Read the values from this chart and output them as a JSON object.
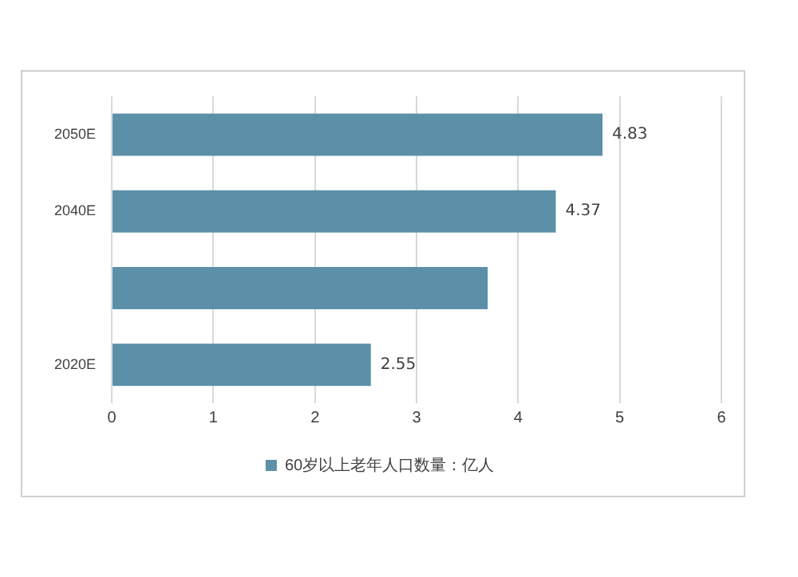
{
  "chart_data": {
    "type": "bar",
    "orientation": "horizontal",
    "categories": [
      "2050E",
      "2040E",
      null,
      "2020E"
    ],
    "series": [
      {
        "name": "60岁以上老年人口数量：亿人",
        "color": "#5b90a8",
        "values": [
          4.83,
          4.37,
          3.7,
          2.55
        ],
        "value_labels": [
          "4.83",
          "4.37",
          null,
          "2.55"
        ]
      }
    ],
    "xlim": [
      0,
      6
    ],
    "xticks": [
      0,
      1,
      2,
      3,
      4,
      5,
      6
    ],
    "grid": "x",
    "legend": "bottom"
  }
}
